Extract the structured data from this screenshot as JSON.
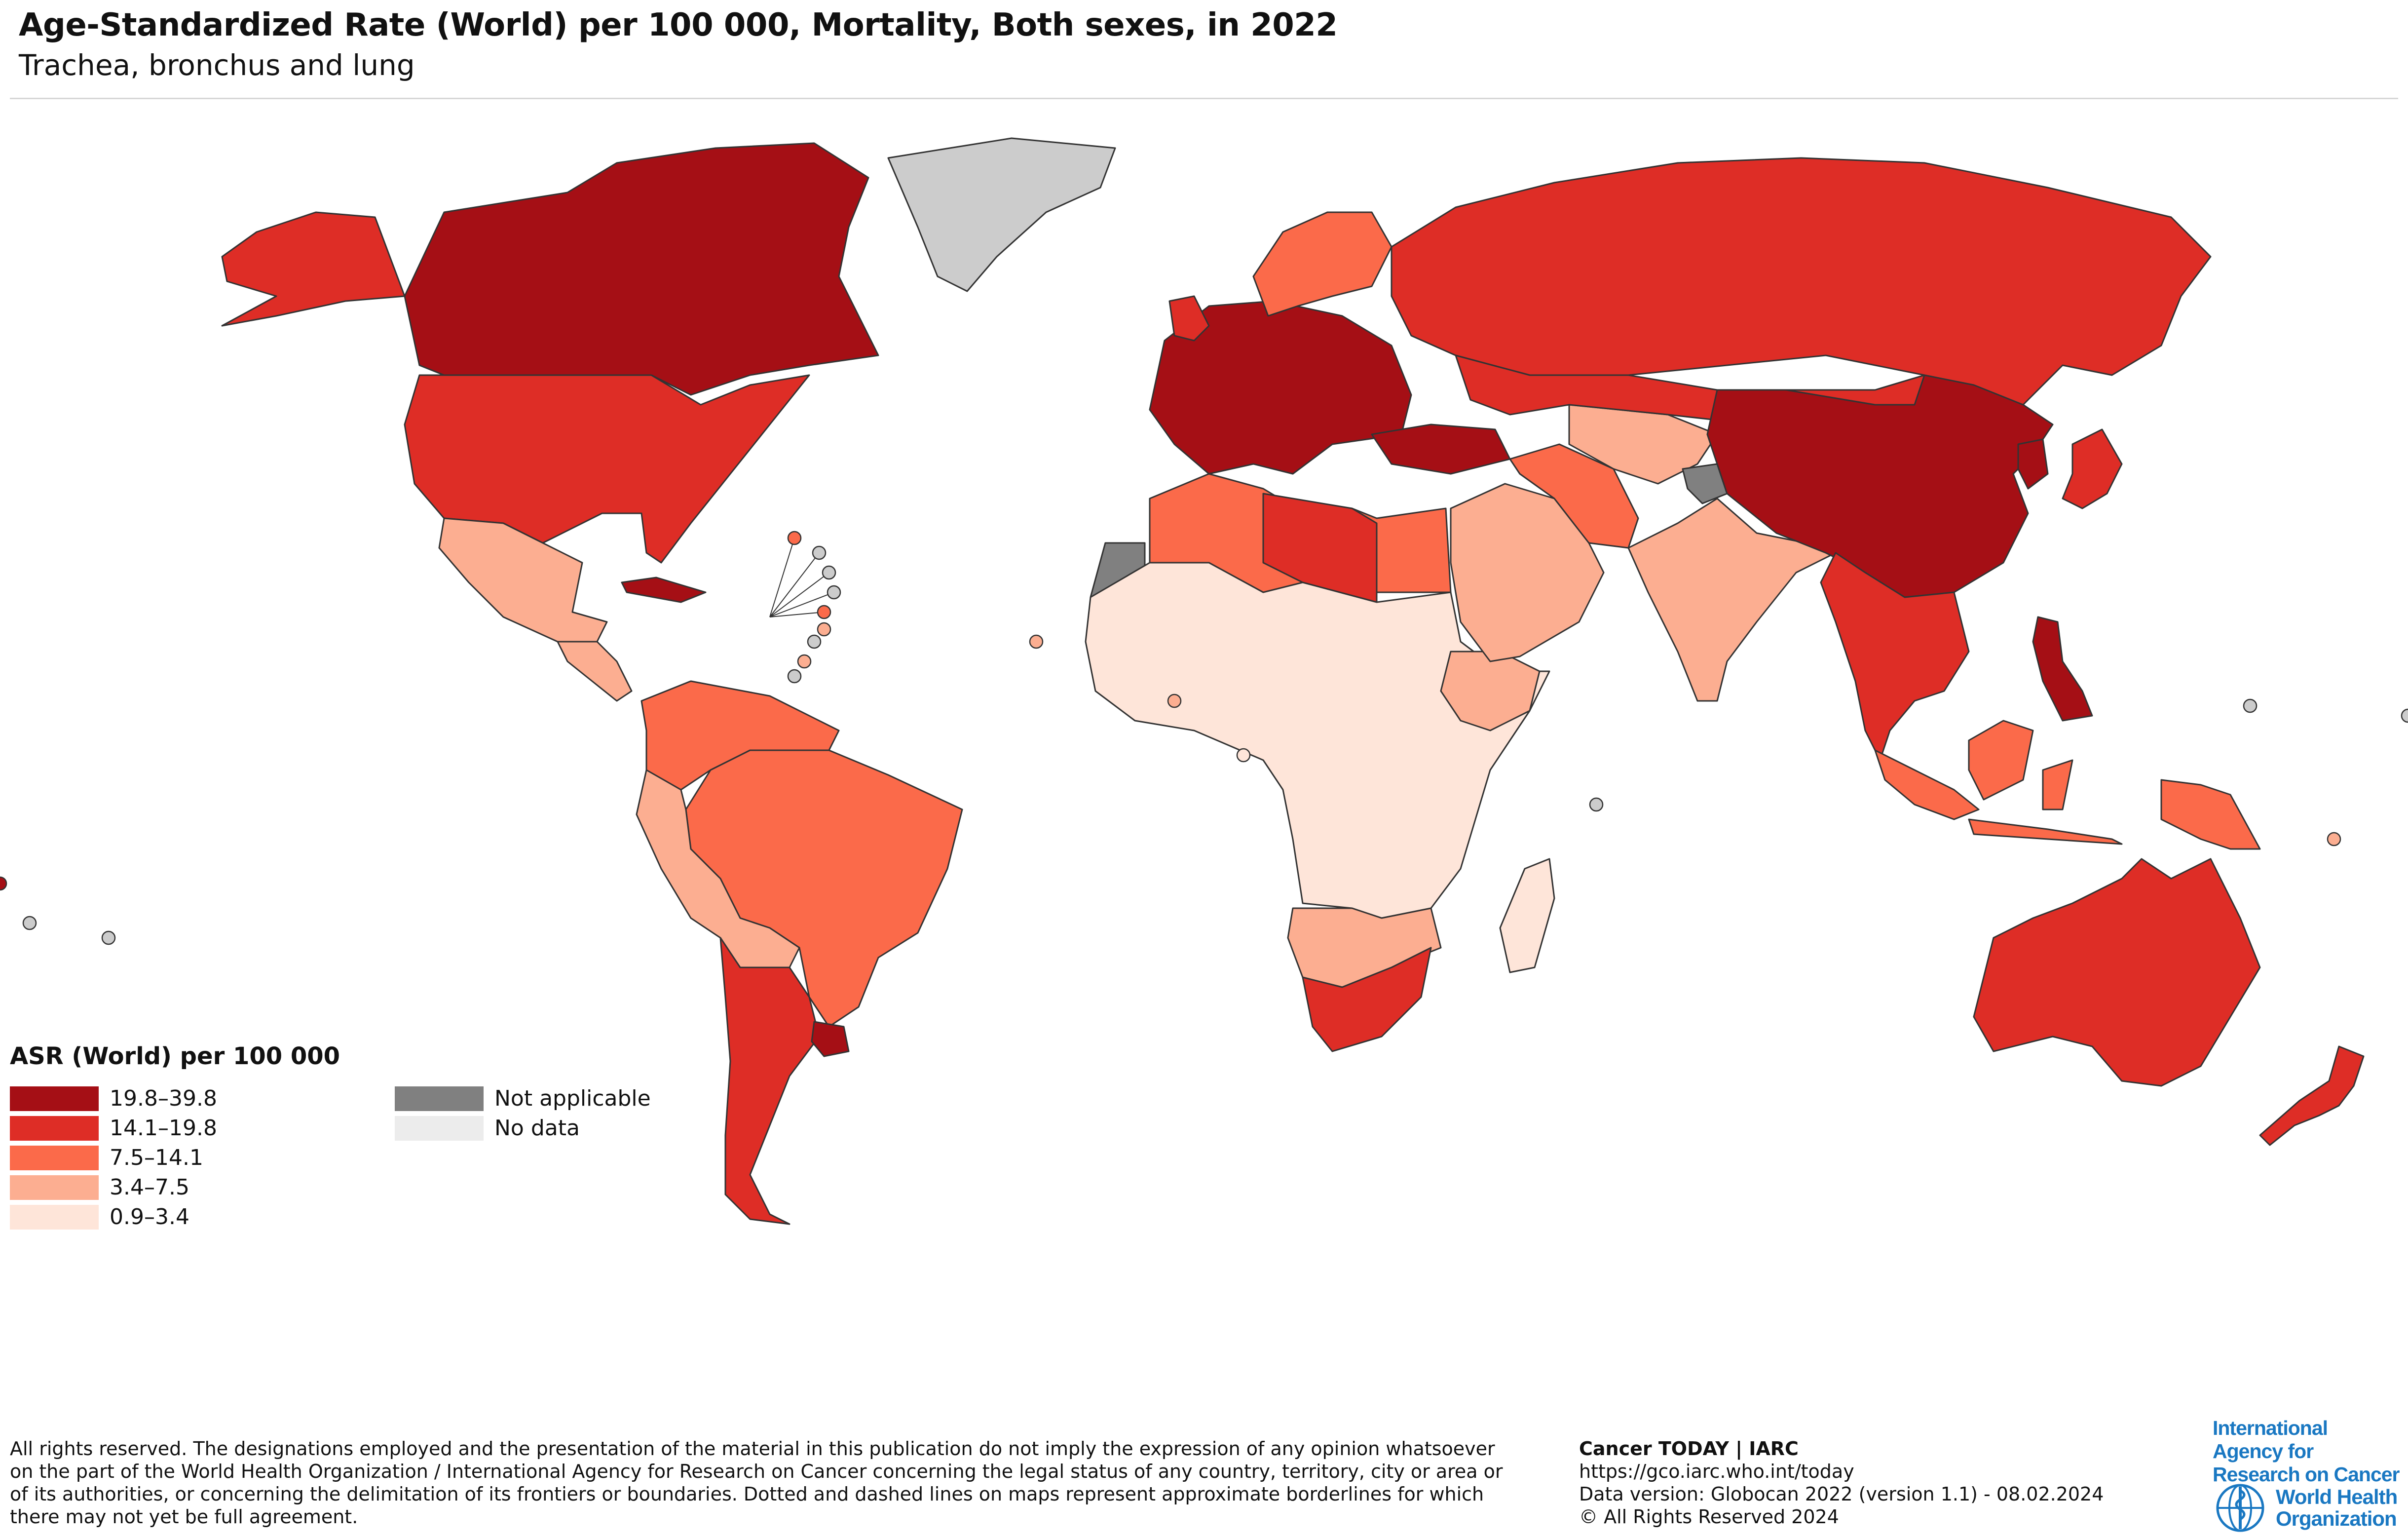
{
  "header": {
    "title": "Age-Standardized Rate (World) per 100 000, Mortality, Both sexes, in 2022",
    "subtitle": "Trachea, bronchus and lung"
  },
  "legend": {
    "title": "ASR (World) per 100 000",
    "classes": [
      {
        "label": "19.8–39.8",
        "color": "#a50f15"
      },
      {
        "label": "14.1–19.8",
        "color": "#de2d26"
      },
      {
        "label": "7.5–14.1",
        "color": "#fb6a4a"
      },
      {
        "label": "3.4–7.5",
        "color": "#fcae91"
      },
      {
        "label": "0.9–3.4",
        "color": "#fee5d9"
      }
    ],
    "extra": [
      {
        "label": "Not applicable",
        "color": "#808080"
      },
      {
        "label": "No data",
        "color": "#ececec"
      }
    ]
  },
  "footer": {
    "disclaimer": "All rights reserved. The designations employed and the presentation of the material in this publication do not imply the expression of any opinion whatsoever on the part of the World Health Organization / International Agency for Research on Cancer concerning the legal status of any country, territory, city or area or of its authorities, or concerning the delimitation of its frontiers or boundaries. Dotted and dashed lines on maps represent approximate borderlines for which there may not yet be full agreement.",
    "source_name": "Cancer TODAY | IARC",
    "url": "https://gco.iarc.who.int/today",
    "data_version": "Data version: Globocan 2022 (version 1.1) - 08.02.2024",
    "copyright": "© All Rights Reserved 2024",
    "iarc_logo": "International Agency for Research on Cancer",
    "who_logo_line1": "World Health",
    "who_logo_line2": "Organization"
  },
  "map_regions": [
    {
      "name": "Canada",
      "class": 0
    },
    {
      "name": "Alaska (United States)",
      "class": 1
    },
    {
      "name": "United States",
      "class": 1
    },
    {
      "name": "Greenland",
      "class": -1
    },
    {
      "name": "Cuba",
      "class": 0
    },
    {
      "name": "Mexico",
      "class": 3
    },
    {
      "name": "Central America",
      "class": 3
    },
    {
      "name": "Colombia / Venezuela / Guianas",
      "class": 2
    },
    {
      "name": "Brazil",
      "class": 2
    },
    {
      "name": "Peru / Ecuador / Bolivia / Paraguay",
      "class": 3
    },
    {
      "name": "Argentina / Chile",
      "class": 1
    },
    {
      "name": "Uruguay",
      "class": 0
    },
    {
      "name": "Western Europe",
      "class": 0
    },
    {
      "name": "United Kingdom / Ireland",
      "class": 1
    },
    {
      "name": "Norway / Sweden / Finland",
      "class": 2
    },
    {
      "name": "Russia",
      "class": 1
    },
    {
      "name": "Turkey",
      "class": 0
    },
    {
      "name": "North Africa",
      "class": 2
    },
    {
      "name": "Libya",
      "class": 1
    },
    {
      "name": "Western Sahara",
      "class": -2
    },
    {
      "name": "Sub-Saharan Africa",
      "class": 4
    },
    {
      "name": "Ethiopia region",
      "class": 3
    },
    {
      "name": "Southern Africa (Angola, Zambia, Mozambique)",
      "class": 3
    },
    {
      "name": "South Africa",
      "class": 1
    },
    {
      "name": "Madagascar",
      "class": 4
    },
    {
      "name": "Middle East / Arabia",
      "class": 3
    },
    {
      "name": "Iran",
      "class": 2
    },
    {
      "name": "Central Asia",
      "class": 3
    },
    {
      "name": "Kazakhstan",
      "class": 1
    },
    {
      "name": "India",
      "class": 3
    },
    {
      "name": "Kashmir",
      "class": -2
    },
    {
      "name": "China",
      "class": 0
    },
    {
      "name": "Mongolia",
      "class": 1
    },
    {
      "name": "Korea",
      "class": 0
    },
    {
      "name": "Japan",
      "class": 1
    },
    {
      "name": "Southeast Asia",
      "class": 1
    },
    {
      "name": "Philippines",
      "class": 0
    },
    {
      "name": "Indonesia",
      "class": 2
    },
    {
      "name": "Papua New Guinea",
      "class": 2
    },
    {
      "name": "Australia",
      "class": 1
    },
    {
      "name": "New Zealand",
      "class": 1
    }
  ]
}
